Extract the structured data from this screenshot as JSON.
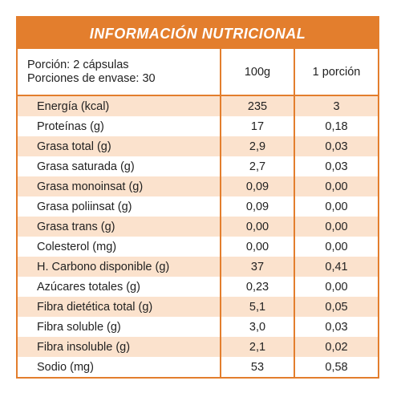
{
  "header": {
    "title": "INFORMACIÓN NUTRICIONAL"
  },
  "table": {
    "columns": [
      "Porción: 2 cápsulas",
      "Porciones de envase: 30",
      "100g",
      "1 porción"
    ],
    "rows": [
      [
        "Energía (kcal)",
        "235",
        "3"
      ],
      [
        "Proteínas (g)",
        "17",
        "0,18"
      ],
      [
        "Grasa total (g)",
        "2,9",
        "0,03"
      ],
      [
        "Grasa saturada (g)",
        "2,7",
        "0,03"
      ],
      [
        "Grasa monoinsat (g)",
        "0,09",
        "0,00"
      ],
      [
        "Grasa poliinsat (g)",
        "0,09",
        "0,00"
      ],
      [
        "Grasa trans (g)",
        "0,00",
        "0,00"
      ],
      [
        "Colesterol (mg)",
        "0,00",
        "0,00"
      ],
      [
        "H. Carbono disponible (g)",
        "37",
        "0,41"
      ],
      [
        "Azúcares totales (g)",
        "0,23",
        "0,00"
      ],
      [
        "Fibra dietética total (g)",
        "5,1",
        "0,05"
      ],
      [
        "Fibra soluble (g)",
        "3,0",
        "0,03"
      ],
      [
        "Fibra insoluble (g)",
        "2,1",
        "0,02"
      ],
      [
        "Sodio (mg)",
        "53",
        "0,58"
      ]
    ]
  }
}
